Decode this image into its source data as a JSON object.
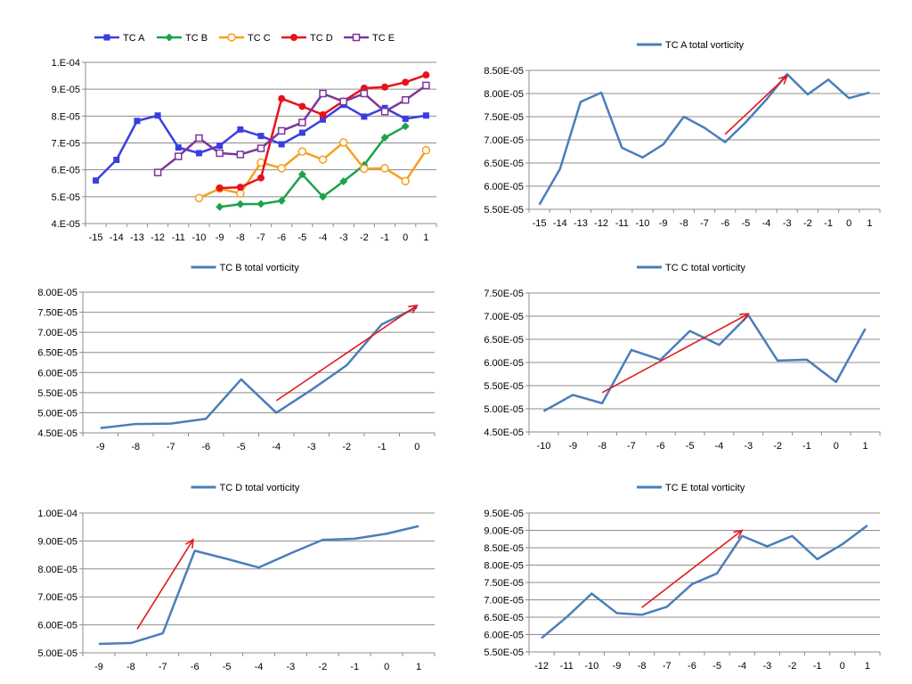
{
  "colors": {
    "series_single": "#4a7ebb",
    "arrow": "#e0191d",
    "grid": "#8c8c8c"
  },
  "chart_data": [
    {
      "type": "line",
      "title": "",
      "x": [
        -15,
        -14,
        -13,
        -12,
        -11,
        -10,
        -9,
        -8,
        -7,
        -6,
        -5,
        -4,
        -3,
        -2,
        -1,
        0,
        1
      ],
      "xticks": [
        "-15",
        "-14",
        "-13",
        "-12",
        "-11",
        "-10",
        "-9",
        "-8",
        "-7",
        "-6",
        "-5",
        "-4",
        "-3",
        "-2",
        "-1",
        "0",
        "1"
      ],
      "ylim": [
        4e-05,
        0.0001
      ],
      "yticks": [
        "4.E-05",
        "5.E-05",
        "6.E-05",
        "7.E-05",
        "8.E-05",
        "9.E-05",
        "1.E-04"
      ],
      "legend": "top",
      "grid": true,
      "series": [
        {
          "name": "TC A",
          "color": "#3a3ee0",
          "marker": "square-filled",
          "x": [
            -15,
            -14,
            -13,
            -12,
            -11,
            -10,
            -9,
            -8,
            -7,
            -6,
            -5,
            -4,
            -3,
            -2,
            -1,
            0,
            1
          ],
          "values": [
            5.6e-05,
            6.37e-05,
            7.82e-05,
            8.02e-05,
            6.83e-05,
            6.62e-05,
            6.9e-05,
            7.5e-05,
            7.26e-05,
            6.95e-05,
            7.38e-05,
            7.87e-05,
            8.42e-05,
            7.98e-05,
            8.3e-05,
            7.9e-05,
            8.02e-05
          ]
        },
        {
          "name": "TC B",
          "color": "#1ea24a",
          "marker": "diamond-filled",
          "x": [
            -9,
            -8,
            -7,
            -6,
            -5,
            -4,
            -3,
            -2,
            -1,
            0
          ],
          "values": [
            4.62e-05,
            4.72e-05,
            4.73e-05,
            4.85e-05,
            5.83e-05,
            5e-05,
            5.57e-05,
            6.18e-05,
            7.2e-05,
            7.62e-05
          ]
        },
        {
          "name": "TC C",
          "color": "#f5a11c",
          "marker": "circle-open",
          "x": [
            -10,
            -9,
            -8,
            -7,
            -6,
            -5,
            -4,
            -3,
            -2,
            -1,
            0,
            1
          ],
          "values": [
            4.95e-05,
            5.3e-05,
            5.12e-05,
            6.27e-05,
            6.06e-05,
            6.68e-05,
            6.38e-05,
            7.02e-05,
            6.04e-05,
            6.06e-05,
            5.58e-05,
            6.73e-05
          ]
        },
        {
          "name": "TC D",
          "color": "#e8121a",
          "marker": "circle-filled",
          "x": [
            -9,
            -8,
            -7,
            -6,
            -5,
            -4,
            -3,
            -2,
            -1,
            0,
            1
          ],
          "values": [
            5.32e-05,
            5.35e-05,
            5.7e-05,
            8.65e-05,
            8.36e-05,
            8.05e-05,
            8.56e-05,
            9.04e-05,
            9.08e-05,
            9.26e-05,
            9.53e-05
          ]
        },
        {
          "name": "TC E",
          "color": "#7b3699",
          "marker": "square-open",
          "x": [
            -12,
            -11,
            -10,
            -9,
            -8,
            -7,
            -6,
            -5,
            -4,
            -3,
            -2,
            -1,
            0,
            1
          ],
          "values": [
            5.9e-05,
            6.5e-05,
            7.18e-05,
            6.62e-05,
            6.57e-05,
            6.8e-05,
            7.45e-05,
            7.76e-05,
            8.84e-05,
            8.54e-05,
            8.84e-05,
            8.17e-05,
            8.6e-05,
            9.14e-05
          ]
        }
      ]
    },
    {
      "type": "line",
      "title": "",
      "x": [
        -15,
        -14,
        -13,
        -12,
        -11,
        -10,
        -9,
        -8,
        -7,
        -6,
        -5,
        -4,
        -3,
        -2,
        -1,
        0,
        1
      ],
      "xticks": [
        "-15",
        "-14",
        "-13",
        "-12",
        "-11",
        "-10",
        "-9",
        "-8",
        "-7",
        "-6",
        "-5",
        "-4",
        "-3",
        "-2",
        "-1",
        "0",
        "1"
      ],
      "ylim": [
        5.5e-05,
        8.5e-05
      ],
      "yticks": [
        "5.50E-05",
        "6.00E-05",
        "6.50E-05",
        "7.00E-05",
        "7.50E-05",
        "8.00E-05",
        "8.50E-05"
      ],
      "legend": "top",
      "grid": true,
      "arrow": {
        "from": [
          -6,
          7.12e-05
        ],
        "to": [
          -3,
          8.38e-05
        ]
      },
      "series": [
        {
          "name": "TC A total vorticity",
          "values": [
            5.6e-05,
            6.37e-05,
            7.82e-05,
            8.02e-05,
            6.83e-05,
            6.62e-05,
            6.9e-05,
            7.5e-05,
            7.26e-05,
            6.95e-05,
            7.38e-05,
            7.87e-05,
            8.42e-05,
            7.98e-05,
            8.3e-05,
            7.9e-05,
            8.02e-05
          ]
        }
      ]
    },
    {
      "type": "line",
      "title": "",
      "x": [
        -9,
        -8,
        -7,
        -6,
        -5,
        -4,
        -3,
        -2,
        -1,
        0
      ],
      "xticks": [
        "-9",
        "-8",
        "-7",
        "-6",
        "-5",
        "-4",
        "-3",
        "-2",
        "-1",
        "0"
      ],
      "ylim": [
        4.5e-05,
        8e-05
      ],
      "yticks": [
        "4.50E-05",
        "5.00E-05",
        "5.50E-05",
        "6.00E-05",
        "6.50E-05",
        "7.00E-05",
        "7.50E-05",
        "8.00E-05"
      ],
      "legend": "top",
      "grid": true,
      "arrow": {
        "from": [
          -4,
          5.3e-05
        ],
        "to": [
          0,
          7.67e-05
        ]
      },
      "series": [
        {
          "name": "TC B total vorticity",
          "values": [
            4.62e-05,
            4.72e-05,
            4.73e-05,
            4.85e-05,
            5.83e-05,
            5e-05,
            5.57e-05,
            6.18e-05,
            7.2e-05,
            7.62e-05
          ]
        }
      ]
    },
    {
      "type": "line",
      "title": "",
      "x": [
        -10,
        -9,
        -8,
        -7,
        -6,
        -5,
        -4,
        -3,
        -2,
        -1,
        0,
        1
      ],
      "xticks": [
        "-10",
        "-9",
        "-8",
        "-7",
        "-6",
        "-5",
        "-4",
        "-3",
        "-2",
        "-1",
        "0",
        "1"
      ],
      "ylim": [
        4.5e-05,
        7.5e-05
      ],
      "yticks": [
        "4.50E-05",
        "5.00E-05",
        "5.50E-05",
        "6.00E-05",
        "6.50E-05",
        "7.00E-05",
        "7.50E-05"
      ],
      "legend": "top",
      "grid": true,
      "arrow": {
        "from": [
          -8,
          5.35e-05
        ],
        "to": [
          -3,
          7.05e-05
        ]
      },
      "series": [
        {
          "name": "TC C total vorticity",
          "values": [
            4.95e-05,
            5.3e-05,
            5.12e-05,
            6.27e-05,
            6.06e-05,
            6.68e-05,
            6.38e-05,
            7.02e-05,
            6.04e-05,
            6.06e-05,
            5.58e-05,
            6.73e-05
          ]
        }
      ]
    },
    {
      "type": "line",
      "title": "",
      "x": [
        -9,
        -8,
        -7,
        -6,
        -5,
        -4,
        -3,
        -2,
        -1,
        0,
        1
      ],
      "xticks": [
        "-9",
        "-8",
        "-7",
        "-6",
        "-5",
        "-4",
        "-3",
        "-2",
        "-1",
        "0",
        "1"
      ],
      "ylim": [
        5e-05,
        0.0001
      ],
      "yticks": [
        "5.00E-05",
        "6.00E-05",
        "7.00E-05",
        "8.00E-05",
        "9.00E-05",
        "1.00E-04"
      ],
      "legend": "top",
      "grid": true,
      "arrow": {
        "from": [
          -7.8,
          5.85e-05
        ],
        "to": [
          -6.05,
          9.05e-05
        ]
      },
      "series": [
        {
          "name": "TC D total vorticity",
          "values": [
            5.32e-05,
            5.35e-05,
            5.7e-05,
            8.65e-05,
            8.36e-05,
            8.05e-05,
            8.56e-05,
            9.04e-05,
            9.08e-05,
            9.26e-05,
            9.53e-05
          ]
        }
      ]
    },
    {
      "type": "line",
      "title": "",
      "x": [
        -12,
        -11,
        -10,
        -9,
        -8,
        -7,
        -6,
        -5,
        -4,
        -3,
        -2,
        -1,
        0,
        1
      ],
      "xticks": [
        "-12",
        "-11",
        "-10",
        "-9",
        "-8",
        "-7",
        "-6",
        "-5",
        "-4",
        "-3",
        "-2",
        "-1",
        "0",
        "1"
      ],
      "ylim": [
        5.5e-05,
        9.5e-05
      ],
      "yticks": [
        "5.50E-05",
        "6.00E-05",
        "6.50E-05",
        "7.00E-05",
        "7.50E-05",
        "8.00E-05",
        "8.50E-05",
        "9.00E-05",
        "9.50E-05"
      ],
      "legend": "top",
      "grid": true,
      "arrow": {
        "from": [
          -8,
          6.78e-05
        ],
        "to": [
          -4,
          9e-05
        ]
      },
      "series": [
        {
          "name": "TC E total vorticity",
          "values": [
            5.9e-05,
            6.5e-05,
            7.18e-05,
            6.62e-05,
            6.57e-05,
            6.8e-05,
            7.45e-05,
            7.76e-05,
            8.84e-05,
            8.54e-05,
            8.84e-05,
            8.17e-05,
            8.6e-05,
            9.14e-05
          ]
        }
      ]
    }
  ]
}
